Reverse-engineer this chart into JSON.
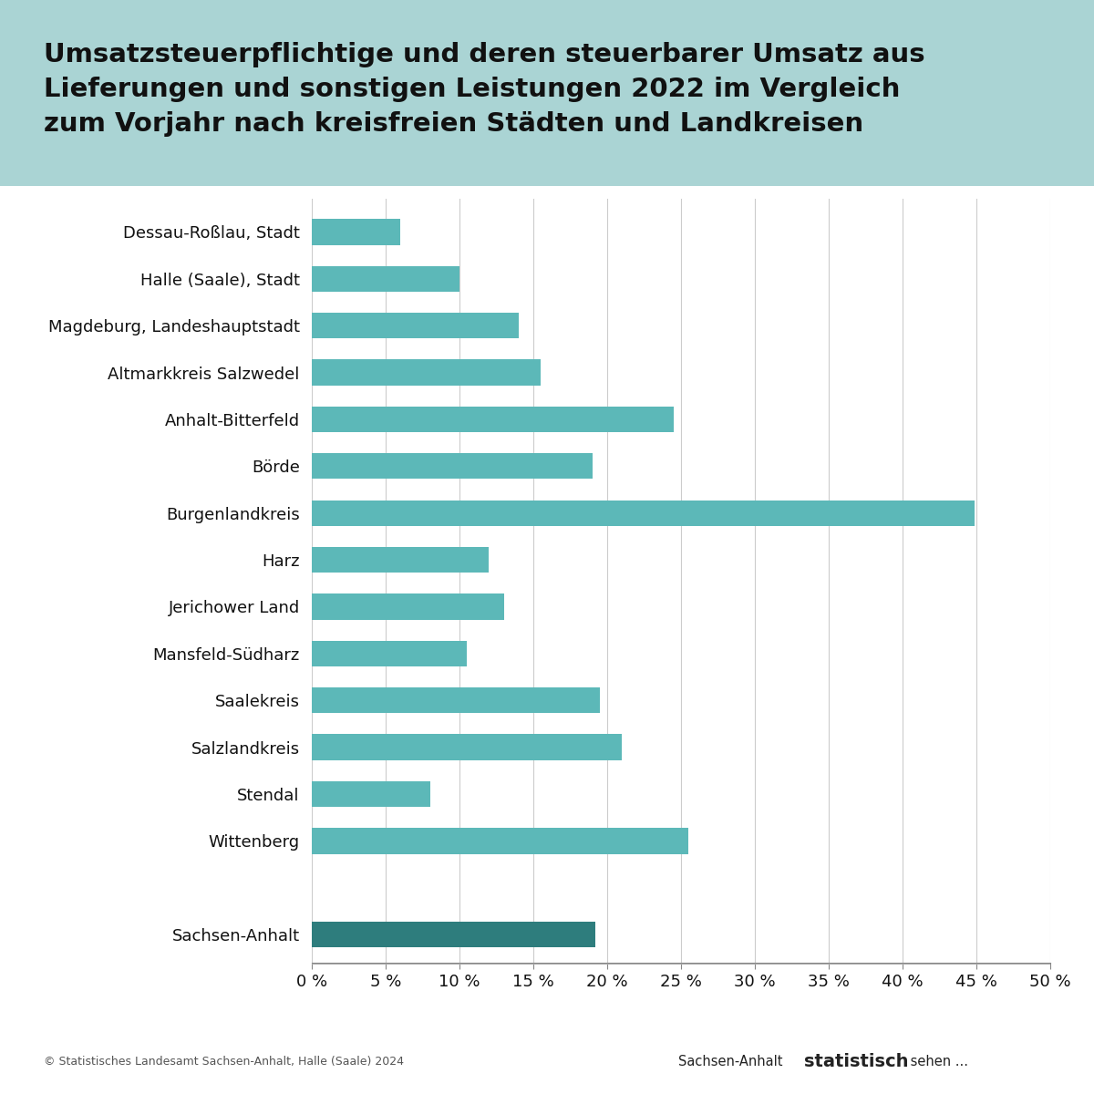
{
  "title": "Umsatzsteuerpflichtige und deren steuerbarer Umsatz aus\nLieferungen und sonstigen Leistungen 2022 im Vergleich\nzum Vorjahr nach kreisfreien Städten und Landkreisen",
  "categories": [
    "Dessau-Roßlau, Stadt",
    "Halle (Saale), Stadt",
    "Magdeburg, Landeshauptstadt",
    "Altmarkkreis Salzwedel",
    "Anhalt-Bitterfeld",
    "Börde",
    "Burgenlandkreis",
    "Harz",
    "Jerichower Land",
    "Mansfeld-Südharz",
    "Saalekreis",
    "Salzlandkreis",
    "Stendal",
    "Wittenberg",
    "",
    "Sachsen-Anhalt"
  ],
  "values": [
    6.0,
    10.0,
    14.0,
    15.5,
    24.5,
    19.0,
    44.9,
    12.0,
    13.0,
    10.5,
    19.5,
    21.0,
    8.0,
    25.5,
    0.0,
    19.2
  ],
  "bar_colors": [
    "#5cb8b8",
    "#5cb8b8",
    "#5cb8b8",
    "#5cb8b8",
    "#5cb8b8",
    "#5cb8b8",
    "#5cb8b8",
    "#5cb8b8",
    "#5cb8b8",
    "#5cb8b8",
    "#5cb8b8",
    "#5cb8b8",
    "#5cb8b8",
    "#5cb8b8",
    "#ffffff",
    "#2e7d7d"
  ],
  "xlim": [
    0,
    50
  ],
  "xticks": [
    0,
    5,
    10,
    15,
    20,
    25,
    30,
    35,
    40,
    45,
    50
  ],
  "xtick_labels": [
    "0 %",
    "5 %",
    "10 %",
    "15 %",
    "20 %",
    "25 %",
    "30 %",
    "35 %",
    "40 %",
    "45 %",
    "50 %"
  ],
  "title_bg_color": "#aad4d4",
  "bg_color": "#ffffff",
  "grid_color": "#cccccc",
  "footer_left": "© Statistisches Landesamt Sachsen-Anhalt, Halle (Saale) 2024",
  "footer_right1": "Sachsen-Anhalt ",
  "footer_right2": "statistisch",
  "footer_right3": " sehen ..."
}
